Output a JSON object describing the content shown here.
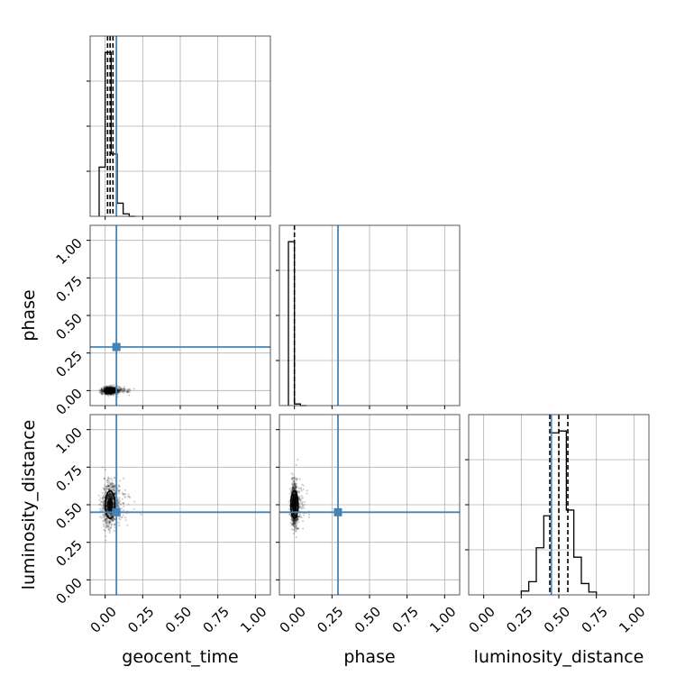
{
  "chart_data": {
    "type": "corner",
    "parameters": [
      "geocent_time",
      "phase",
      "luminosity_distance"
    ],
    "axis_range": [
      -0.1,
      1.1
    ],
    "ticks": [
      0.0,
      0.25,
      0.5,
      0.75,
      1.0
    ],
    "tick_labels": [
      "0.00",
      "0.25",
      "0.50",
      "0.75",
      "1.00"
    ],
    "grid": true,
    "colors": {
      "truth": "#4682b4",
      "hist": "#000000",
      "samples": "#000000"
    },
    "truths": {
      "geocent_time": 0.075,
      "phase": 0.29,
      "luminosity_distance": 0.45
    },
    "quantiles": {
      "geocent_time": [
        0.016,
        0.033,
        0.052
      ],
      "phase": [
        0.0
      ],
      "luminosity_distance": [
        0.44,
        0.5,
        0.56
      ]
    },
    "histograms": {
      "geocent_time": {
        "edges": [
          -0.04,
          0.0,
          0.04,
          0.08,
          0.12,
          0.16,
          0.2
        ],
        "values": [
          0.3,
          1.0,
          0.38,
          0.08,
          0.015,
          0.0
        ]
      },
      "phase": {
        "edges": [
          -0.04,
          0.0,
          0.04,
          0.08
        ],
        "values": [
          1.0,
          0.01,
          0.0
        ]
      },
      "luminosity_distance": {
        "edges": [
          0.25,
          0.3,
          0.35,
          0.4,
          0.45,
          0.5,
          0.55,
          0.6,
          0.65,
          0.7,
          0.75
        ],
        "values": [
          0.02,
          0.07,
          0.25,
          0.42,
          0.86,
          0.87,
          0.45,
          0.2,
          0.06,
          0.015
        ]
      }
    }
  }
}
